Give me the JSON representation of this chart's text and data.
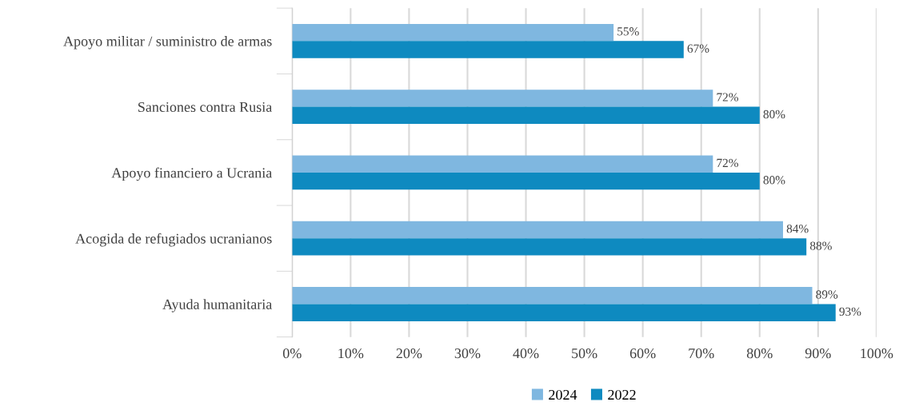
{
  "chart_data": {
    "type": "bar",
    "orientation": "horizontal",
    "categories": [
      "Apoyo militar / suministro de armas",
      "Sanciones contra Rusia",
      "Apoyo financiero a Ucrania",
      "Acogida de refugiados ucranianos",
      "Ayuda humanitaria"
    ],
    "series": [
      {
        "name": "2024",
        "color": "#7fb7e0",
        "values": [
          55,
          72,
          72,
          84,
          89
        ],
        "value_labels": [
          "55%",
          "72%",
          "72%",
          "84%",
          "89%"
        ]
      },
      {
        "name": "2022",
        "color": "#0e8ac0",
        "values": [
          67,
          80,
          80,
          88,
          93
        ],
        "value_labels": [
          "67%",
          "80%",
          "80%",
          "88%",
          "93%"
        ]
      }
    ],
    "xlim": [
      0,
      100
    ],
    "xticks": [
      {
        "value": 0,
        "label": "0%"
      },
      {
        "value": 10,
        "label": "10%"
      },
      {
        "value": 20,
        "label": "20%"
      },
      {
        "value": 30,
        "label": "30%"
      },
      {
        "value": 40,
        "label": "40%"
      },
      {
        "value": 50,
        "label": "50%"
      },
      {
        "value": 60,
        "label": "60%"
      },
      {
        "value": 70,
        "label": "70%"
      },
      {
        "value": 80,
        "label": "80%"
      },
      {
        "value": 90,
        "label": "90%"
      },
      {
        "value": 100,
        "label": "100%"
      }
    ],
    "grid": "x",
    "legend": "bottom"
  }
}
